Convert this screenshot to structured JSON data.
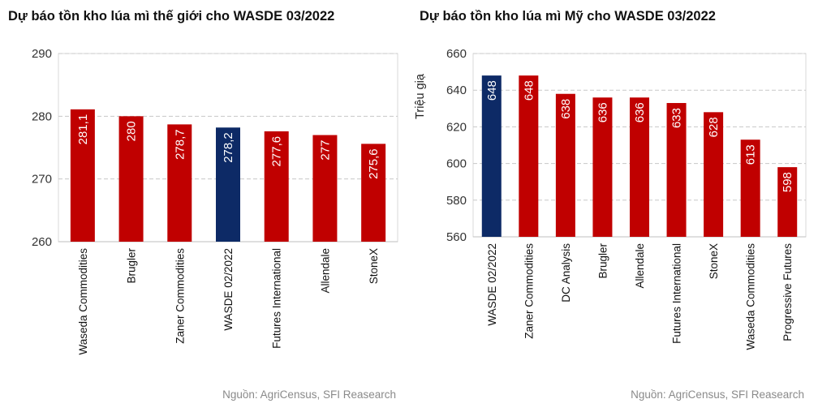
{
  "colors": {
    "bar_default": "#c00000",
    "bar_highlight": "#0d2a66",
    "grid": "#c8c8c8",
    "plot_border": "#d9d9d9",
    "source_text": "#8a8a8a"
  },
  "chart_data": [
    {
      "type": "bar",
      "title": "Dự báo tồn kho lúa mì thế giới cho WASDE 03/2022",
      "ylabel": "",
      "ylim": [
        260,
        290
      ],
      "yticks": [
        260,
        270,
        280,
        290
      ],
      "grid": true,
      "categories": [
        "Waseda Commodities",
        "Brugler",
        "Zaner Commodities",
        "WASDE 02/2022",
        "Futures International",
        "Allendale",
        "StoneX"
      ],
      "values": [
        281.1,
        280,
        278.7,
        278.2,
        277.6,
        277,
        275.6
      ],
      "value_labels": [
        "281,1",
        "280",
        "278,7",
        "278,2",
        "277,6",
        "277",
        "275,6"
      ],
      "highlight": "WASDE 02/2022",
      "source": "Nguồn: AgriCensus, SFI Reasearch"
    },
    {
      "type": "bar",
      "title": "Dự báo tồn kho lúa mì Mỹ cho WASDE 03/2022",
      "ylabel": "Triệu giạ",
      "ylim": [
        560,
        660
      ],
      "yticks": [
        560,
        580,
        600,
        620,
        640,
        660
      ],
      "grid": true,
      "categories": [
        "WASDE 02/2022",
        "Zaner Commodities",
        "DC Analysis",
        "Brugler",
        "Allendale",
        "Futures International",
        "StoneX",
        "Waseda Commodities",
        "Progressive Futures"
      ],
      "values": [
        648,
        648,
        638,
        636,
        636,
        633,
        628,
        613,
        598
      ],
      "value_labels": [
        "648",
        "648",
        "638",
        "636",
        "636",
        "633",
        "628",
        "613",
        "598"
      ],
      "highlight": "WASDE 02/2022",
      "source": "Nguồn: AgriCensus, SFI Reasearch"
    }
  ]
}
